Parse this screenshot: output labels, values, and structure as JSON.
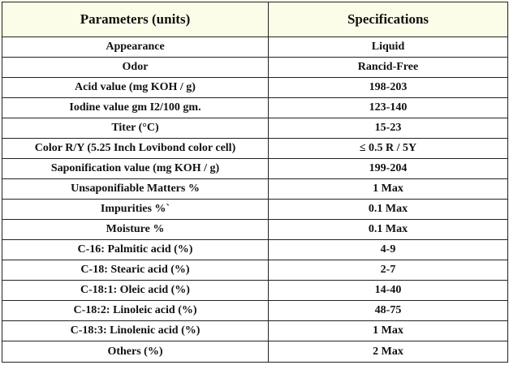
{
  "table": {
    "headers": [
      "Parameters (units)",
      "Specifications"
    ],
    "rows": [
      {
        "parameter": "Appearance",
        "specification": "Liquid"
      },
      {
        "parameter": "Odor",
        "specification": "Rancid-Free"
      },
      {
        "parameter": "Acid value (mg KOH / g)",
        "specification": "198-203"
      },
      {
        "parameter": "Iodine value gm I2/100 gm.",
        "specification": "123-140"
      },
      {
        "parameter": "Titer (°C)",
        "specification": "15-23"
      },
      {
        "parameter": "Color R/Y (5.25 Inch Lovibond color cell)",
        "specification": "≤ 0.5 R / 5Y"
      },
      {
        "parameter": "Saponification value (mg KOH / g)",
        "specification": "199-204"
      },
      {
        "parameter": "Unsaponifiable Matters %",
        "specification": "1 Max"
      },
      {
        "parameter": "Impurities %`",
        "specification": "0.1 Max"
      },
      {
        "parameter": "Moisture %",
        "specification": "0.1 Max"
      },
      {
        "parameter": "C-16: Palmitic acid (%)",
        "specification": "4-9"
      },
      {
        "parameter": "C-18: Stearic acid (%)",
        "specification": "2-7"
      },
      {
        "parameter": "C-18:1: Oleic acid (%)",
        "specification": "14-40"
      },
      {
        "parameter": "C-18:2: Linoleic acid (%)",
        "specification": "48-75"
      },
      {
        "parameter": "C-18:3: Linolenic acid (%)",
        "specification": "1 Max"
      },
      {
        "parameter": "Others (%)",
        "specification": "2 Max"
      }
    ]
  },
  "colors": {
    "header_background": "#fbfde9",
    "border": "#222222",
    "text": "#111111"
  }
}
